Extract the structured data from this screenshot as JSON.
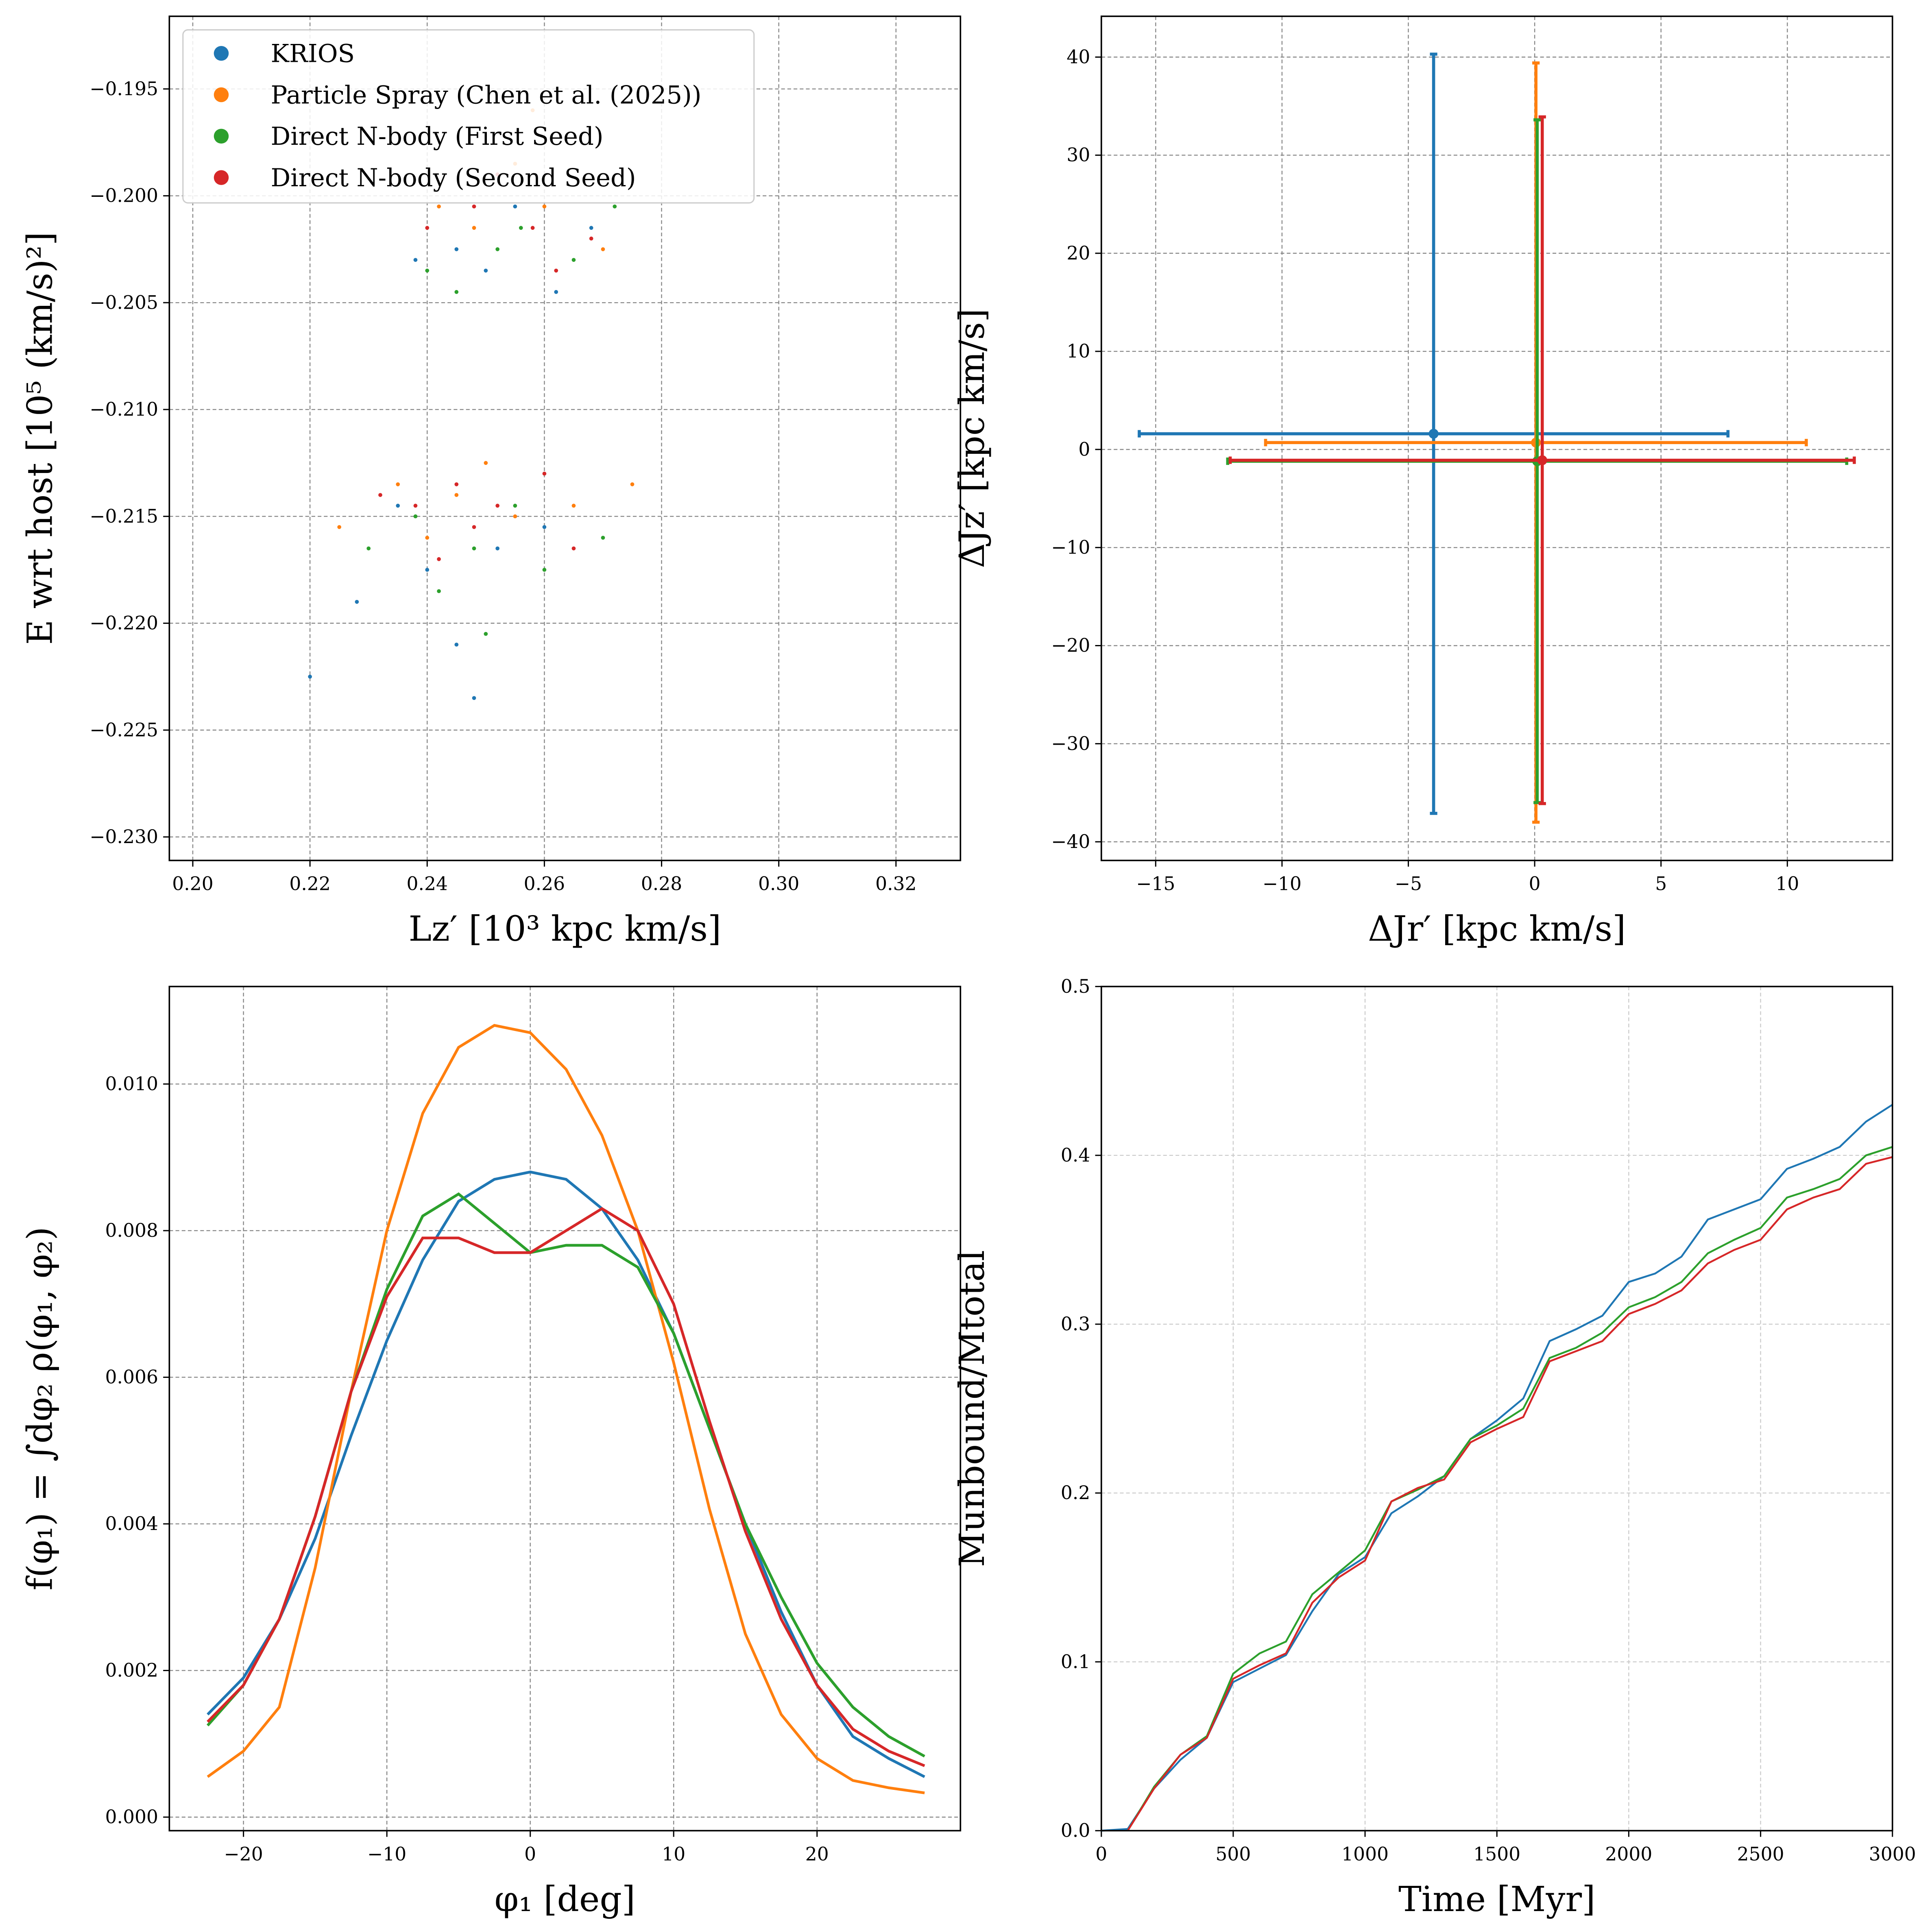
{
  "chart_data": [
    {
      "type": "scatter",
      "xlabel": "Lz′ [10³ kpc km/s]",
      "ylabel": "E wrt host [10⁵ (km/s)²]",
      "xlim": [
        0.196,
        0.331
      ],
      "ylim": [
        -0.2311,
        -0.1916
      ],
      "xticks": [
        {
          "value": 0.2,
          "label": "0.20"
        },
        0.22,
        0.24,
        0.26,
        0.28,
        {
          "value": 0.3,
          "label": "0.30"
        },
        0.32
      ],
      "yticks": [
        {
          "value": -0.195,
          "label": "−0.195"
        },
        {
          "value": -0.2,
          "label": "−0.200"
        },
        {
          "value": -0.205,
          "label": "−0.205"
        },
        {
          "value": -0.21,
          "label": "−0.210"
        },
        {
          "value": -0.215,
          "label": "−0.215"
        },
        {
          "value": -0.22,
          "label": "−0.220"
        },
        {
          "value": -0.225,
          "label": "−0.225"
        },
        {
          "value": -0.23,
          "label": "−0.230"
        }
      ],
      "grid": true,
      "legend": "upper left",
      "series": [
        {
          "name": "KRIOS",
          "color": "#1f77b4",
          "x": [
            0.25,
            0.262,
            0.245,
            0.268,
            0.255,
            0.238,
            0.24,
            0.228,
            0.252,
            0.245,
            0.235,
            0.26,
            0.22,
            0.248
          ],
          "y": [
            -0.2035,
            -0.2045,
            -0.2025,
            -0.2015,
            -0.2005,
            -0.203,
            -0.2175,
            -0.219,
            -0.2165,
            -0.221,
            -0.2145,
            -0.2155,
            -0.2225,
            -0.2235
          ]
        },
        {
          "name": "Particle Spray (Chen et al. (2025))",
          "color": "#ff7f0e",
          "x": [
            0.255,
            0.26,
            0.248,
            0.27,
            0.242,
            0.258,
            0.245,
            0.235,
            0.255,
            0.25,
            0.265,
            0.24,
            0.225,
            0.275
          ],
          "y": [
            -0.1985,
            -0.2005,
            -0.2015,
            -0.2025,
            -0.2005,
            -0.196,
            -0.214,
            -0.2135,
            -0.215,
            -0.2125,
            -0.2145,
            -0.216,
            -0.2155,
            -0.2135
          ]
        },
        {
          "name": "Direct N-body (First Seed)",
          "color": "#2ca02c",
          "x": [
            0.252,
            0.24,
            0.265,
            0.256,
            0.245,
            0.272,
            0.248,
            0.238,
            0.26,
            0.242,
            0.255,
            0.23,
            0.27,
            0.25
          ],
          "y": [
            -0.2025,
            -0.2035,
            -0.203,
            -0.2015,
            -0.2045,
            -0.2005,
            -0.2165,
            -0.215,
            -0.2175,
            -0.2185,
            -0.2145,
            -0.2165,
            -0.216,
            -0.2205
          ]
        },
        {
          "name": "Direct N-body (Second Seed)",
          "color": "#d62728",
          "x": [
            0.258,
            0.248,
            0.262,
            0.24,
            0.268,
            0.252,
            0.245,
            0.252,
            0.238,
            0.26,
            0.248,
            0.232,
            0.265,
            0.242
          ],
          "y": [
            -0.2015,
            -0.2005,
            -0.2035,
            -0.2015,
            -0.202,
            -0.199,
            -0.2135,
            -0.2145,
            -0.2145,
            -0.213,
            -0.2155,
            -0.214,
            -0.2165,
            -0.217
          ]
        }
      ]
    },
    {
      "type": "errorbar",
      "xlabel": "ΔJr′ [kpc km/s]",
      "ylabel": "ΔJz′ [kpc km/s]",
      "xlim": [
        -17.15,
        14.16
      ],
      "ylim": [
        -41.9,
        44.16
      ],
      "xticks": [
        {
          "value": -15,
          "label": "−15"
        },
        {
          "value": -10,
          "label": "−10"
        },
        {
          "value": -5,
          "label": "−5"
        },
        0,
        5,
        10
      ],
      "yticks": [
        {
          "value": -40,
          "label": "−40"
        },
        {
          "value": -30,
          "label": "−30"
        },
        {
          "value": -20,
          "label": "−20"
        },
        {
          "value": -10,
          "label": "−10"
        },
        0,
        10,
        20,
        30,
        40
      ],
      "grid": true,
      "series": [
        {
          "color": "#1f77b4",
          "x": -4.0,
          "y": 1.6,
          "xerr": 11.65,
          "yerr": 38.7
        },
        {
          "color": "#ff7f0e",
          "x": 0.05,
          "y": 0.7,
          "xerr": 10.7,
          "yerr": 38.7
        },
        {
          "color": "#2ca02c",
          "x": 0.1,
          "y": -1.2,
          "xerr": 12.25,
          "yerr": 34.8
        },
        {
          "color": "#d62728",
          "x": 0.3,
          "y": -1.1,
          "xerr": 12.35,
          "yerr": 35.0
        }
      ]
    },
    {
      "type": "line",
      "xlabel": "φ₁ [deg]",
      "ylabel": "f(φ₁) = ∫dφ₂ ρ(φ₁, φ₂)",
      "xlim": [
        -25.17,
        30.0
      ],
      "ylim": [
        -0.000185,
        0.01133
      ],
      "xticks": [
        {
          "value": -20,
          "label": "−20"
        },
        {
          "value": -10,
          "label": "−10"
        },
        0,
        10,
        20
      ],
      "yticks": [
        {
          "value": 0,
          "label": "0.000"
        },
        0.002,
        0.004,
        0.006,
        0.008,
        {
          "value": 0.01,
          "label": "0.010"
        }
      ],
      "grid": true,
      "x": [
        -22.5,
        -20,
        -17.5,
        -15,
        -12.5,
        -10,
        -7.5,
        -5,
        -2.5,
        0,
        2.5,
        5,
        7.5,
        10,
        12.5,
        15,
        17.5,
        20,
        22.5,
        25,
        27.5
      ],
      "series": [
        {
          "color": "#1f77b4",
          "values": [
            0.0014,
            0.0019,
            0.0027,
            0.0038,
            0.0052,
            0.0065,
            0.0076,
            0.0084,
            0.0087,
            0.0088,
            0.0087,
            0.0083,
            0.0076,
            0.0066,
            0.0053,
            0.004,
            0.0028,
            0.0018,
            0.0011,
            0.0008,
            0.00055
          ]
        },
        {
          "color": "#ff7f0e",
          "values": [
            0.00055,
            0.0009,
            0.0015,
            0.0034,
            0.0058,
            0.008,
            0.0096,
            0.0105,
            0.0108,
            0.0107,
            0.0102,
            0.0093,
            0.008,
            0.0062,
            0.0042,
            0.0025,
            0.0014,
            0.0008,
            0.0005,
            0.0004,
            0.00033
          ]
        },
        {
          "color": "#2ca02c",
          "values": [
            0.00125,
            0.0018,
            0.0027,
            0.0041,
            0.0058,
            0.0072,
            0.0082,
            0.0085,
            0.0081,
            0.0077,
            0.0078,
            0.0078,
            0.0075,
            0.0066,
            0.0053,
            0.004,
            0.003,
            0.0021,
            0.0015,
            0.0011,
            0.00083
          ]
        },
        {
          "color": "#d62728",
          "values": [
            0.0013,
            0.0018,
            0.0027,
            0.0041,
            0.0058,
            0.0071,
            0.0079,
            0.0079,
            0.0077,
            0.0077,
            0.008,
            0.0083,
            0.008,
            0.007,
            0.0054,
            0.0039,
            0.0027,
            0.0018,
            0.0012,
            0.0009,
            0.0007
          ]
        }
      ]
    },
    {
      "type": "line",
      "xlabel": "Time [Myr]",
      "ylabel": "Munbound/Mtotal",
      "xlim": [
        0,
        3000
      ],
      "ylim": [
        0,
        0.5
      ],
      "xticks": [
        0,
        500,
        1000,
        1500,
        2000,
        2500,
        3000
      ],
      "yticks": [
        {
          "value": 0,
          "label": "0.0"
        },
        0.1,
        0.2,
        0.3,
        0.4,
        0.5
      ],
      "grid": true,
      "x": [
        0,
        100,
        200,
        300,
        400,
        500,
        600,
        700,
        800,
        900,
        1000,
        1100,
        1200,
        1300,
        1400,
        1500,
        1600,
        1700,
        1800,
        1900,
        2000,
        2100,
        2200,
        2300,
        2400,
        2500,
        2600,
        2700,
        2800,
        2900,
        3000
      ],
      "series": [
        {
          "color": "#1f77b4",
          "values": [
            0,
            0.001,
            0.025,
            0.042,
            0.055,
            0.088,
            0.096,
            0.104,
            0.13,
            0.152,
            0.162,
            0.188,
            0.198,
            0.21,
            0.232,
            0.243,
            0.256,
            0.29,
            0.297,
            0.305,
            0.325,
            0.33,
            0.34,
            0.362,
            0.368,
            0.374,
            0.392,
            0.398,
            0.405,
            0.42,
            0.43
          ]
        },
        {
          "color": "#2ca02c",
          "values": [
            null,
            0,
            0.026,
            0.045,
            0.056,
            0.093,
            0.105,
            0.112,
            0.14,
            0.153,
            0.166,
            0.195,
            0.202,
            0.21,
            0.232,
            0.24,
            0.25,
            0.28,
            0.286,
            0.295,
            0.31,
            0.316,
            0.325,
            0.342,
            0.35,
            0.357,
            0.375,
            0.38,
            0.386,
            0.4,
            0.405
          ]
        },
        {
          "color": "#d62728",
          "values": [
            null,
            0,
            0.025,
            0.045,
            0.055,
            0.09,
            0.098,
            0.105,
            0.135,
            0.15,
            0.16,
            0.195,
            0.203,
            0.208,
            0.23,
            0.238,
            0.245,
            0.278,
            0.284,
            0.29,
            0.306,
            0.312,
            0.32,
            0.336,
            0.344,
            0.35,
            0.368,
            0.375,
            0.38,
            0.395,
            0.399
          ]
        }
      ]
    }
  ]
}
